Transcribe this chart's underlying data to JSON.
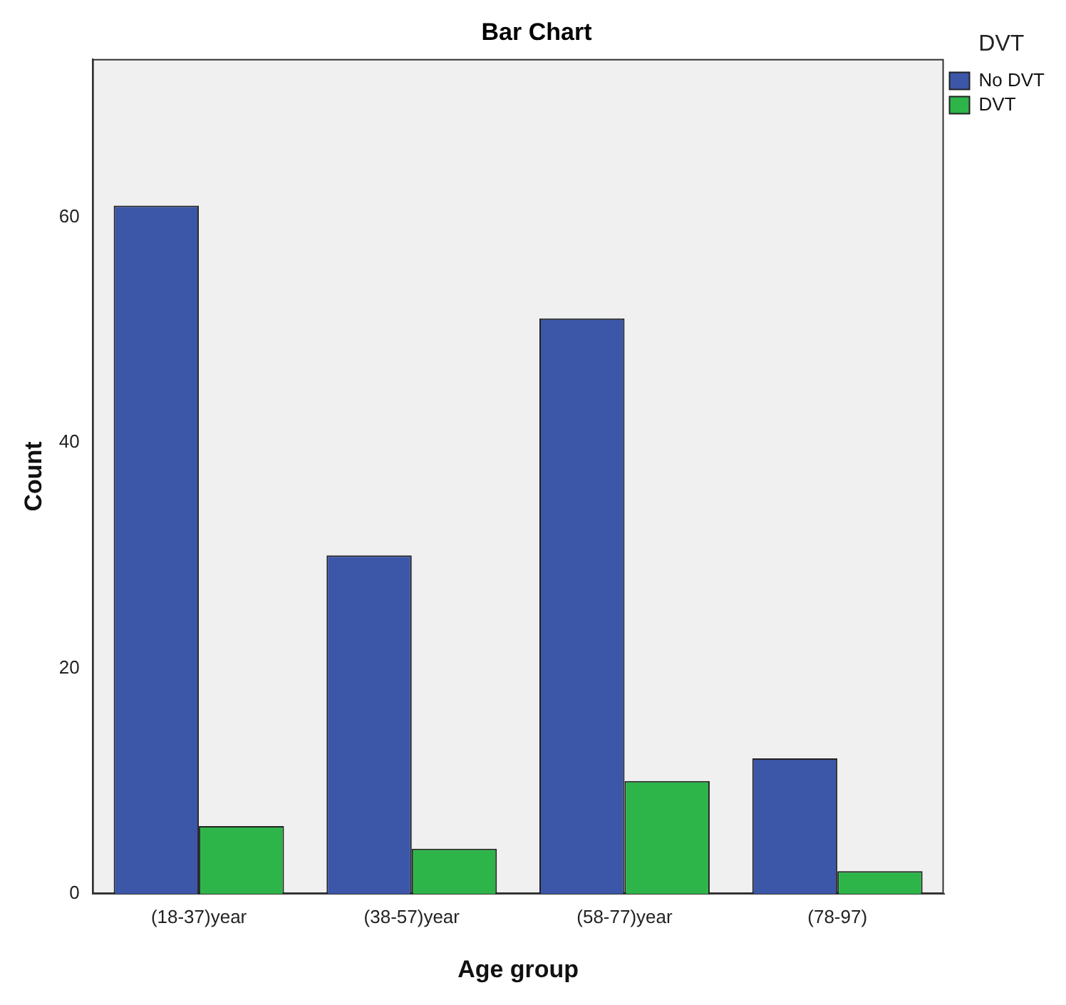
{
  "chart_data": {
    "type": "bar",
    "title": "Bar Chart",
    "xlabel": "Age group",
    "ylabel": "Count",
    "legend_title": "DVT",
    "categories": [
      "(18-37)year",
      "(38-57)year",
      "(58-77)year",
      "(78-97)"
    ],
    "series": [
      {
        "name": "No DVT",
        "color": "#3c56a8",
        "values": [
          61,
          30,
          51,
          12
        ]
      },
      {
        "name": "DVT",
        "color": "#2eb54a",
        "values": [
          6,
          4,
          10,
          2
        ]
      }
    ],
    "ylim": [
      0,
      74
    ],
    "yticks": [
      0,
      20,
      40,
      60
    ],
    "grid": false,
    "legend": "top right"
  }
}
